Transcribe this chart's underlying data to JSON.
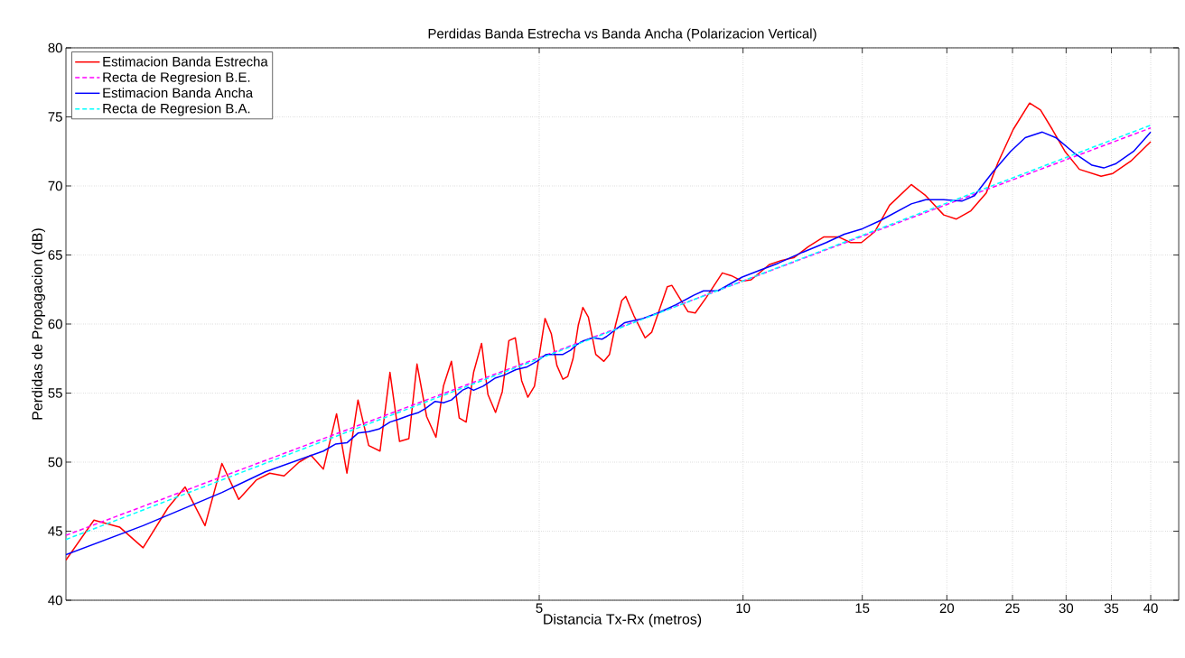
{
  "chart_data": {
    "type": "line",
    "title": "Perdidas Banda Estrecha vs Banda Ancha (Polarizacion Vertical)",
    "xlabel": "Distancia Tx-Rx (metros)",
    "ylabel": "Perdidas de Propagacion (dB)",
    "log": "x",
    "xlim": [
      1,
      44
    ],
    "ylim": [
      40,
      80
    ],
    "xticks": [
      5,
      10,
      15,
      20,
      25,
      30,
      35,
      40
    ],
    "yticks": [
      40,
      45,
      50,
      55,
      60,
      65,
      70,
      75,
      80
    ],
    "grid": true,
    "legend": "top left",
    "series": [
      {
        "name": "Estimacion Banda Estrecha",
        "color": "#ff0000",
        "line_style": "solid",
        "x": [
          1.0,
          1.1,
          1.2,
          1.3,
          1.415,
          1.5,
          1.605,
          1.7,
          1.8,
          1.91,
          2.0,
          2.1,
          2.21,
          2.3,
          2.4,
          2.51,
          2.6,
          2.7,
          2.8,
          2.91,
          3.01,
          3.11,
          3.21,
          3.3,
          3.41,
          3.52,
          3.61,
          3.71,
          3.81,
          3.9,
          4.0,
          4.11,
          4.2,
          4.31,
          4.41,
          4.51,
          4.61,
          4.71,
          4.81,
          4.92,
          5.1,
          5.21,
          5.31,
          5.42,
          5.51,
          5.61,
          5.71,
          5.8,
          5.91,
          6.06,
          6.23,
          6.35,
          6.48,
          6.62,
          6.71,
          6.9,
          7.17,
          7.33,
          7.73,
          7.85,
          8.29,
          8.5,
          8.82,
          9.32,
          9.61,
          9.97,
          10.28,
          10.93,
          11.38,
          11.88,
          12.48,
          13.15,
          13.85,
          14.42,
          14.96,
          15.66,
          16.46,
          17.72,
          18.61,
          19.79,
          20.66,
          21.7,
          22.87,
          23.8,
          25.07,
          26.5,
          27.5,
          28.62,
          29.88,
          31.39,
          33.79,
          35.17,
          37.4,
          40
        ],
        "values": [
          42.9,
          45.8,
          45.3,
          43.8,
          46.7,
          48.2,
          45.4,
          49.9,
          47.3,
          48.7,
          49.2,
          49.0,
          50.0,
          50.5,
          49.5,
          53.5,
          49.2,
          54.5,
          51.2,
          50.8,
          56.5,
          51.5,
          51.7,
          57.1,
          53.3,
          51.8,
          55.5,
          57.3,
          53.2,
          52.9,
          56.5,
          58.6,
          54.9,
          53.6,
          55.1,
          58.8,
          59.0,
          55.9,
          54.7,
          55.5,
          60.4,
          59.3,
          57.0,
          56.0,
          56.2,
          57.5,
          59.9,
          61.2,
          60.5,
          57.8,
          57.3,
          57.8,
          59.9,
          61.7,
          62.0,
          60.6,
          59.0,
          59.4,
          62.7,
          62.8,
          60.9,
          60.8,
          61.9,
          63.7,
          63.5,
          63.1,
          63.2,
          64.3,
          64.6,
          64.8,
          65.6,
          66.3,
          66.3,
          65.9,
          65.9,
          66.7,
          68.6,
          70.1,
          69.3,
          67.9,
          67.6,
          68.2,
          69.5,
          71.7,
          74.1,
          76.0,
          75.5,
          74.1,
          72.5,
          71.2,
          70.7,
          70.9,
          71.8,
          73.2
        ]
      },
      {
        "name": "Recta de Regresion B.E.",
        "color": "#ff00ff",
        "line_style": "dashed",
        "x": [
          1,
          40
        ],
        "values": [
          44.7,
          74.2
        ]
      },
      {
        "name": "Estimacion Banda Ancha",
        "color": "#0000ff",
        "line_style": "solid",
        "x": [
          1.0,
          1.3,
          1.7,
          1.97,
          2.4,
          2.5,
          2.6,
          2.7,
          2.8,
          2.9,
          3.01,
          3.1,
          3.22,
          3.32,
          3.4,
          3.51,
          3.61,
          3.71,
          3.85,
          3.93,
          4.0,
          4.13,
          4.31,
          4.44,
          4.62,
          4.8,
          4.96,
          5.12,
          5.28,
          5.42,
          5.56,
          5.68,
          5.82,
          6.0,
          6.19,
          6.29,
          6.48,
          6.69,
          7.11,
          7.49,
          7.96,
          8.47,
          8.74,
          9.18,
          9.97,
          10.6,
          11.27,
          12.25,
          13.27,
          14.11,
          15.01,
          15.96,
          17.72,
          18.61,
          19.79,
          21.04,
          21.97,
          23.37,
          24.84,
          26.11,
          27.67,
          28.96,
          30.81,
          32.77,
          34.1,
          35.49,
          37.74,
          40
        ],
        "values": [
          43.3,
          45.4,
          47.8,
          49.3,
          50.8,
          51.3,
          51.4,
          52.1,
          52.2,
          52.4,
          52.9,
          53.1,
          53.4,
          53.6,
          53.9,
          54.4,
          54.3,
          54.5,
          55.2,
          55.4,
          55.2,
          55.5,
          56.1,
          56.3,
          56.7,
          56.9,
          57.3,
          57.8,
          57.8,
          57.8,
          58.1,
          58.5,
          58.8,
          59.0,
          58.9,
          59.1,
          59.6,
          60.1,
          60.4,
          60.8,
          61.4,
          62.1,
          62.4,
          62.4,
          63.4,
          63.9,
          64.4,
          65.2,
          65.9,
          66.5,
          66.9,
          67.5,
          68.7,
          69.0,
          69.0,
          68.9,
          69.3,
          71.0,
          72.5,
          73.5,
          73.9,
          73.5,
          72.4,
          71.5,
          71.3,
          71.6,
          72.5,
          73.9
        ]
      },
      {
        "name": "Recta de Regresion B.A.",
        "color": "#00ffff",
        "line_style": "dashed",
        "x": [
          1,
          40
        ],
        "values": [
          44.4,
          74.4
        ]
      }
    ]
  }
}
